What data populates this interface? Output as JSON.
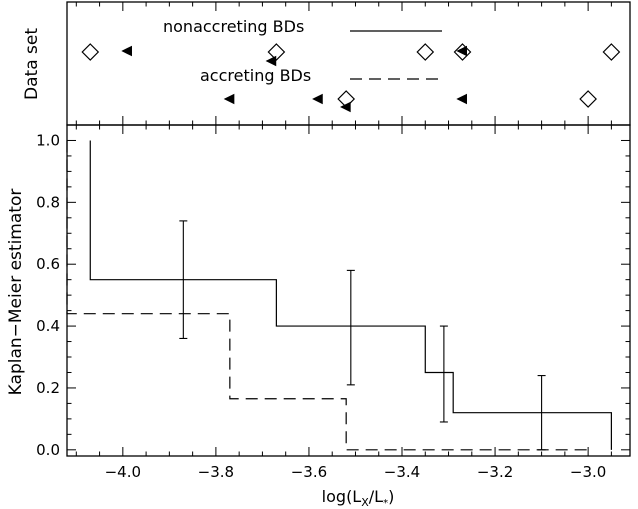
{
  "chart_data": [
    {
      "type": "scatter",
      "panel": "top",
      "ylabel": "Data set",
      "xlim": [
        -4.12,
        -2.91
      ],
      "series": [
        {
          "name": "nonaccreting BDs",
          "line_style": "solid",
          "detections_x": [
            -4.07,
            -3.67,
            -3.35,
            -3.27,
            -2.95
          ],
          "upper_limits_x": [
            -3.99,
            -3.68,
            -3.27
          ]
        },
        {
          "name": "accreting BDs",
          "line_style": "dashed",
          "detections_x": [
            -3.52,
            -3.0
          ],
          "upper_limits_x": [
            -3.77,
            -3.58,
            -3.52,
            -3.27
          ]
        }
      ]
    },
    {
      "type": "line",
      "panel": "bottom",
      "xlabel": "log(L",
      "xlabel_sub": "X",
      "xlabel_mid": "/L",
      "xlabel_sub2": "*",
      "xlabel_end": ")",
      "ylabel": "Kaplan−Meier estimator",
      "xlim": [
        -4.12,
        -2.91
      ],
      "ylim": [
        -0.02,
        1.05
      ],
      "xticks": [
        -4.0,
        -3.8,
        -3.6,
        -3.4,
        -3.2,
        -3.0
      ],
      "xtick_labels": [
        "−4.0",
        "−3.8",
        "−3.6",
        "−3.4",
        "−3.2",
        "−3.0"
      ],
      "yticks": [
        0.0,
        0.2,
        0.4,
        0.6,
        0.8,
        1.0
      ],
      "ytick_labels": [
        "0.0",
        "0.2",
        "0.4",
        "0.6",
        "0.8",
        "1.0"
      ],
      "series": [
        {
          "name": "nonaccreting BDs",
          "line_style": "solid",
          "steps_x": [
            -4.07,
            -3.67,
            -3.35,
            -3.29,
            -2.95
          ],
          "steps_y": [
            1.0,
            0.55,
            0.4,
            0.25,
            0.12,
            0.0
          ],
          "errorbars": [
            {
              "x": -3.87,
              "y": 0.55,
              "low": 0.36,
              "high": 0.74
            },
            {
              "x": -3.51,
              "y": 0.4,
              "low": 0.21,
              "high": 0.58
            },
            {
              "x": -3.31,
              "y": 0.25,
              "low": 0.09,
              "high": 0.4
            },
            {
              "x": -3.1,
              "y": 0.12,
              "low": 0.0,
              "high": 0.24
            }
          ]
        },
        {
          "name": "accreting BDs",
          "line_style": "dashed",
          "steps_x": [
            -4.12,
            -3.77,
            -3.52,
            -3.0
          ],
          "steps_y": [
            1.0,
            0.44,
            0.165,
            0.0
          ],
          "errorbars": []
        }
      ]
    }
  ]
}
